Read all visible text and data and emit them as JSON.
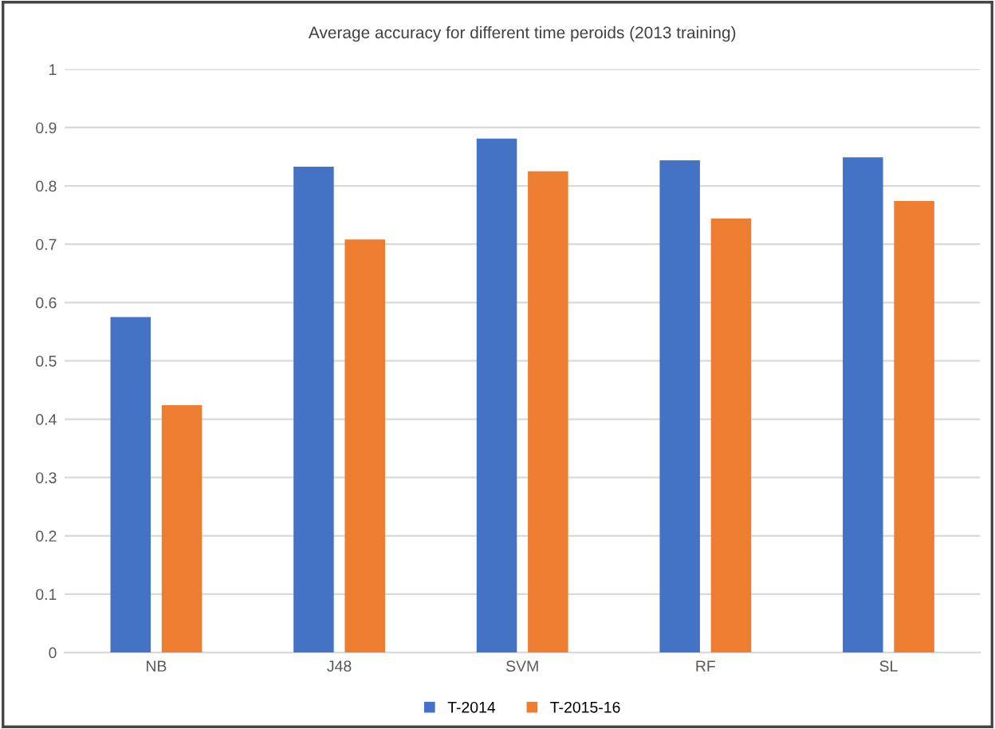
{
  "chart_data": {
    "type": "bar",
    "title": "Average accuracy for different time peroids (2013 training)",
    "categories": [
      "NB",
      "J48",
      "SVM",
      "RF",
      "SL"
    ],
    "series": [
      {
        "name": "T-2014",
        "color": "#4472c4",
        "values": [
          0.575,
          0.833,
          0.881,
          0.844,
          0.849
        ]
      },
      {
        "name": "T-2015-16",
        "color": "#ed7d31",
        "values": [
          0.424,
          0.708,
          0.825,
          0.744,
          0.774
        ]
      }
    ],
    "ylim": [
      0,
      1
    ],
    "yticks": [
      0,
      0.1,
      0.2,
      0.3,
      0.4,
      0.5,
      0.6,
      0.7,
      0.8,
      0.9,
      1
    ],
    "grid": "y",
    "legend": "bottom"
  }
}
